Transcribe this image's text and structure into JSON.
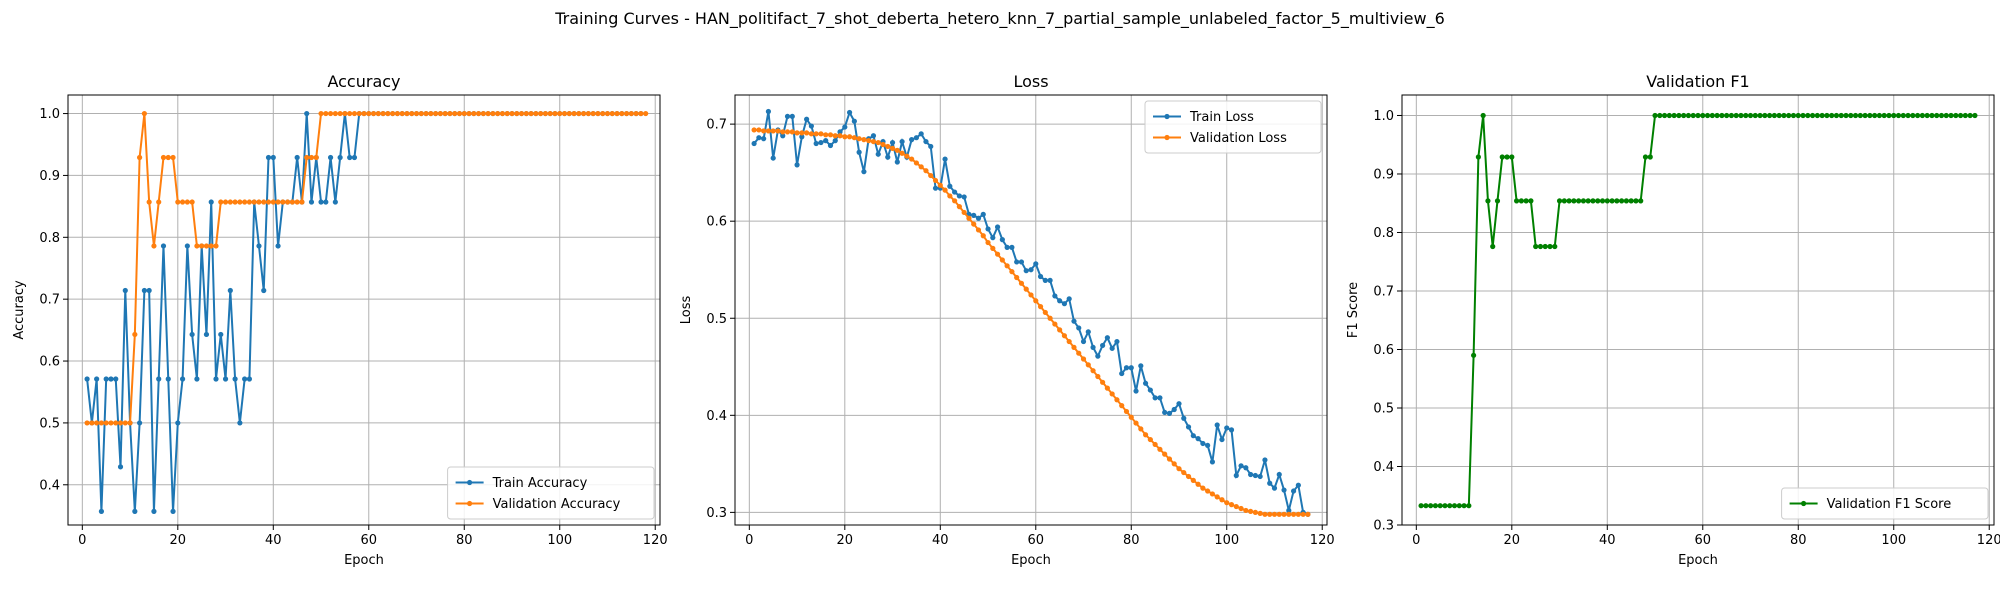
{
  "suptitle": "Training Curves - HAN_politifact_7_shot_deberta_hetero_knn_7_partial_sample_unlabeled_factor_5_multiview_6",
  "chart_data": [
    {
      "type": "line",
      "title": "Accuracy",
      "xlabel": "Epoch",
      "ylabel": "Accuracy",
      "xlim": [
        -3,
        121
      ],
      "ylim": [
        0.335,
        1.03
      ],
      "xticks": [
        0,
        20,
        40,
        60,
        80,
        100,
        120
      ],
      "yticks": [
        0.4,
        0.5,
        0.6,
        0.7,
        0.8,
        0.9,
        1.0
      ],
      "grid": true,
      "legend_position": "lower-right",
      "x_start": 1,
      "series": [
        {
          "name": "Train Accuracy",
          "color": "#1f77b4",
          "values": [
            0.571,
            0.5,
            0.571,
            0.357,
            0.571,
            0.571,
            0.571,
            0.429,
            0.714,
            0.5,
            0.357,
            0.5,
            0.714,
            0.714,
            0.357,
            0.571,
            0.786,
            0.571,
            0.357,
            0.5,
            0.571,
            0.786,
            0.643,
            0.571,
            0.786,
            0.643,
            0.857,
            0.571,
            0.643,
            0.571,
            0.714,
            0.571,
            0.5,
            0.571,
            0.571,
            0.857,
            0.786,
            0.714,
            0.929,
            0.929,
            0.786,
            0.857,
            0.857,
            0.857,
            0.929,
            0.857,
            1.0,
            0.857,
            0.929,
            0.857,
            0.857,
            0.929,
            0.857,
            0.929,
            1.0,
            0.929,
            0.929,
            1.0,
            1.0,
            1.0,
            1.0,
            1.0,
            1.0,
            1.0,
            1.0,
            1.0,
            1.0,
            1.0,
            1.0,
            1.0,
            1.0,
            1.0,
            1.0,
            1.0,
            1.0,
            1.0,
            1.0,
            1.0,
            1.0,
            1.0,
            1.0,
            1.0,
            1.0,
            1.0,
            1.0,
            1.0,
            1.0,
            1.0,
            1.0,
            1.0,
            1.0,
            1.0,
            1.0,
            1.0,
            1.0,
            1.0,
            1.0,
            1.0,
            1.0,
            1.0,
            1.0,
            1.0,
            1.0,
            1.0,
            1.0,
            1.0,
            1.0,
            1.0,
            1.0,
            1.0,
            1.0,
            1.0,
            1.0,
            1.0,
            1.0,
            1.0,
            1.0
          ]
        },
        {
          "name": "Validation Accuracy",
          "color": "#ff7f0e",
          "values": [
            0.5,
            0.5,
            0.5,
            0.5,
            0.5,
            0.5,
            0.5,
            0.5,
            0.5,
            0.5,
            0.643,
            0.929,
            1.0,
            0.857,
            0.786,
            0.857,
            0.929,
            0.929,
            0.929,
            0.857,
            0.857,
            0.857,
            0.857,
            0.786,
            0.786,
            0.786,
            0.786,
            0.786,
            0.857,
            0.857,
            0.857,
            0.857,
            0.857,
            0.857,
            0.857,
            0.857,
            0.857,
            0.857,
            0.857,
            0.857,
            0.857,
            0.857,
            0.857,
            0.857,
            0.857,
            0.857,
            0.929,
            0.929,
            0.929,
            1.0,
            1.0,
            1.0,
            1.0,
            1.0,
            1.0,
            1.0,
            1.0,
            1.0,
            1.0,
            1.0,
            1.0,
            1.0,
            1.0,
            1.0,
            1.0,
            1.0,
            1.0,
            1.0,
            1.0,
            1.0,
            1.0,
            1.0,
            1.0,
            1.0,
            1.0,
            1.0,
            1.0,
            1.0,
            1.0,
            1.0,
            1.0,
            1.0,
            1.0,
            1.0,
            1.0,
            1.0,
            1.0,
            1.0,
            1.0,
            1.0,
            1.0,
            1.0,
            1.0,
            1.0,
            1.0,
            1.0,
            1.0,
            1.0,
            1.0,
            1.0,
            1.0,
            1.0,
            1.0,
            1.0,
            1.0,
            1.0,
            1.0,
            1.0,
            1.0,
            1.0,
            1.0,
            1.0,
            1.0,
            1.0,
            1.0,
            1.0,
            1.0,
            1.0
          ]
        }
      ]
    },
    {
      "type": "line",
      "title": "Loss",
      "xlabel": "Epoch",
      "ylabel": "Loss",
      "xlim": [
        -3,
        121
      ],
      "ylim": [
        0.287,
        0.73
      ],
      "xticks": [
        0,
        20,
        40,
        60,
        80,
        100,
        120
      ],
      "yticks": [
        0.3,
        0.4,
        0.5,
        0.6,
        0.7
      ],
      "grid": true,
      "legend_position": "upper-right",
      "x_start": 1,
      "series": [
        {
          "name": "Train Loss",
          "color": "#1f77b4",
          "values": [
            0.68,
            0.686,
            0.685,
            0.713,
            0.665,
            0.694,
            0.688,
            0.708,
            0.708,
            0.658,
            0.687,
            0.705,
            0.698,
            0.68,
            0.681,
            0.683,
            0.678,
            0.683,
            0.692,
            0.697,
            0.712,
            0.703,
            0.671,
            0.651,
            0.685,
            0.688,
            0.669,
            0.682,
            0.666,
            0.681,
            0.661,
            0.682,
            0.666,
            0.684,
            0.686,
            0.69,
            0.682,
            0.677,
            0.634,
            0.634,
            0.664,
            0.636,
            0.63,
            0.626,
            0.625,
            0.607,
            0.606,
            0.603,
            0.607,
            0.592,
            0.583,
            0.594,
            0.581,
            0.573,
            0.573,
            0.558,
            0.558,
            0.549,
            0.55,
            0.556,
            0.543,
            0.539,
            0.539,
            0.523,
            0.518,
            0.515,
            0.52,
            0.497,
            0.49,
            0.476,
            0.486,
            0.47,
            0.461,
            0.472,
            0.48,
            0.469,
            0.476,
            0.443,
            0.449,
            0.449,
            0.425,
            0.451,
            0.433,
            0.426,
            0.418,
            0.418,
            0.403,
            0.402,
            0.406,
            0.412,
            0.397,
            0.388,
            0.379,
            0.376,
            0.371,
            0.369,
            0.352,
            0.39,
            0.375,
            0.387,
            0.385,
            0.338,
            0.348,
            0.346,
            0.339,
            0.338,
            0.337,
            0.354,
            0.33,
            0.325,
            0.339,
            0.323,
            0.302,
            0.322,
            0.328,
            0.3,
            0.298
          ]
        },
        {
          "name": "Validation Loss",
          "color": "#ff7f0e",
          "values": [
            0.694,
            0.694,
            0.693,
            0.693,
            0.693,
            0.693,
            0.692,
            0.692,
            0.692,
            0.691,
            0.691,
            0.691,
            0.69,
            0.69,
            0.69,
            0.689,
            0.689,
            0.688,
            0.688,
            0.687,
            0.687,
            0.686,
            0.685,
            0.684,
            0.683,
            0.682,
            0.681,
            0.679,
            0.677,
            0.675,
            0.673,
            0.67,
            0.667,
            0.664,
            0.66,
            0.656,
            0.652,
            0.647,
            0.642,
            0.637,
            0.632,
            0.626,
            0.621,
            0.615,
            0.609,
            0.603,
            0.597,
            0.591,
            0.585,
            0.578,
            0.572,
            0.566,
            0.56,
            0.554,
            0.548,
            0.542,
            0.536,
            0.53,
            0.524,
            0.518,
            0.512,
            0.506,
            0.5,
            0.494,
            0.488,
            0.482,
            0.476,
            0.47,
            0.464,
            0.458,
            0.452,
            0.446,
            0.44,
            0.434,
            0.428,
            0.422,
            0.416,
            0.41,
            0.404,
            0.398,
            0.392,
            0.386,
            0.38,
            0.375,
            0.37,
            0.365,
            0.36,
            0.355,
            0.35,
            0.345,
            0.341,
            0.337,
            0.333,
            0.329,
            0.325,
            0.322,
            0.319,
            0.316,
            0.313,
            0.31,
            0.308,
            0.306,
            0.304,
            0.302,
            0.301,
            0.3,
            0.299,
            0.298,
            0.298,
            0.298,
            0.298,
            0.298,
            0.298,
            0.298,
            0.298,
            0.298,
            0.298
          ]
        }
      ]
    },
    {
      "type": "line",
      "title": "Validation F1",
      "xlabel": "Epoch",
      "ylabel": "F1 Score",
      "xlim": [
        -3,
        121
      ],
      "ylim": [
        0.3,
        1.035
      ],
      "xticks": [
        0,
        20,
        40,
        60,
        80,
        100,
        120
      ],
      "yticks": [
        0.3,
        0.4,
        0.5,
        0.6,
        0.7,
        0.8,
        0.9,
        1.0
      ],
      "grid": true,
      "legend_position": "lower-right",
      "x_start": 1,
      "series": [
        {
          "name": "Validation F1 Score",
          "color": "#008000",
          "values": [
            0.333,
            0.333,
            0.333,
            0.333,
            0.333,
            0.333,
            0.333,
            0.333,
            0.333,
            0.333,
            0.333,
            0.59,
            0.929,
            1.0,
            0.854,
            0.776,
            0.854,
            0.929,
            0.929,
            0.929,
            0.854,
            0.854,
            0.854,
            0.854,
            0.776,
            0.776,
            0.776,
            0.776,
            0.776,
            0.854,
            0.854,
            0.854,
            0.854,
            0.854,
            0.854,
            0.854,
            0.854,
            0.854,
            0.854,
            0.854,
            0.854,
            0.854,
            0.854,
            0.854,
            0.854,
            0.854,
            0.854,
            0.929,
            0.929,
            1.0,
            1.0,
            1.0,
            1.0,
            1.0,
            1.0,
            1.0,
            1.0,
            1.0,
            1.0,
            1.0,
            1.0,
            1.0,
            1.0,
            1.0,
            1.0,
            1.0,
            1.0,
            1.0,
            1.0,
            1.0,
            1.0,
            1.0,
            1.0,
            1.0,
            1.0,
            1.0,
            1.0,
            1.0,
            1.0,
            1.0,
            1.0,
            1.0,
            1.0,
            1.0,
            1.0,
            1.0,
            1.0,
            1.0,
            1.0,
            1.0,
            1.0,
            1.0,
            1.0,
            1.0,
            1.0,
            1.0,
            1.0,
            1.0,
            1.0,
            1.0,
            1.0,
            1.0,
            1.0,
            1.0,
            1.0,
            1.0,
            1.0,
            1.0,
            1.0,
            1.0,
            1.0,
            1.0,
            1.0,
            1.0,
            1.0,
            1.0,
            1.0
          ]
        }
      ]
    }
  ]
}
